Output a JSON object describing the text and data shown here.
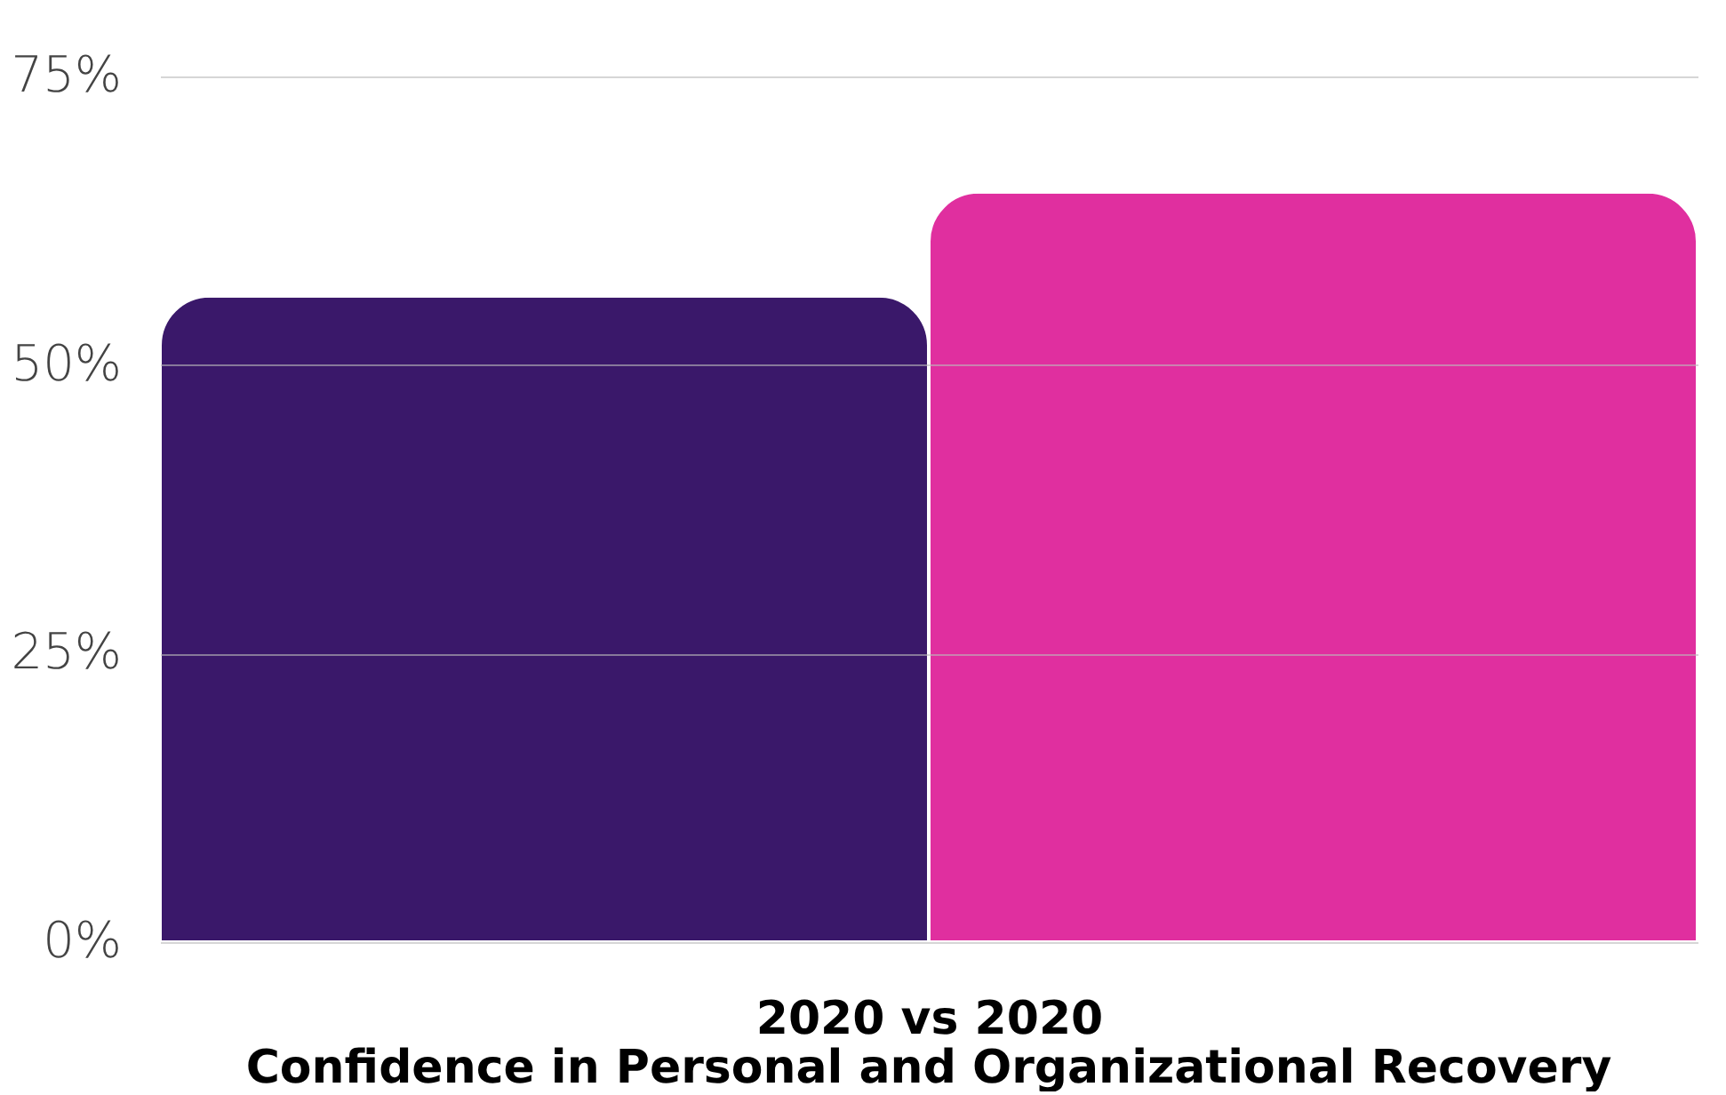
{
  "chart_data": {
    "type": "bar",
    "title": "Confidence in Personal and Organizational Recovery",
    "xlabel": "2020 vs 2020",
    "categories": [
      null,
      null
    ],
    "values": [
      56,
      65
    ],
    "colors": [
      "#3a186a",
      "#e02f9f"
    ],
    "ylim": [
      0,
      75
    ],
    "yticks": [
      {
        "value": 0,
        "label": "0%"
      },
      {
        "value": 25,
        "label": "25%"
      },
      {
        "value": 50,
        "label": "50%"
      },
      {
        "value": 75,
        "label": "75%"
      }
    ],
    "grid": "y"
  }
}
